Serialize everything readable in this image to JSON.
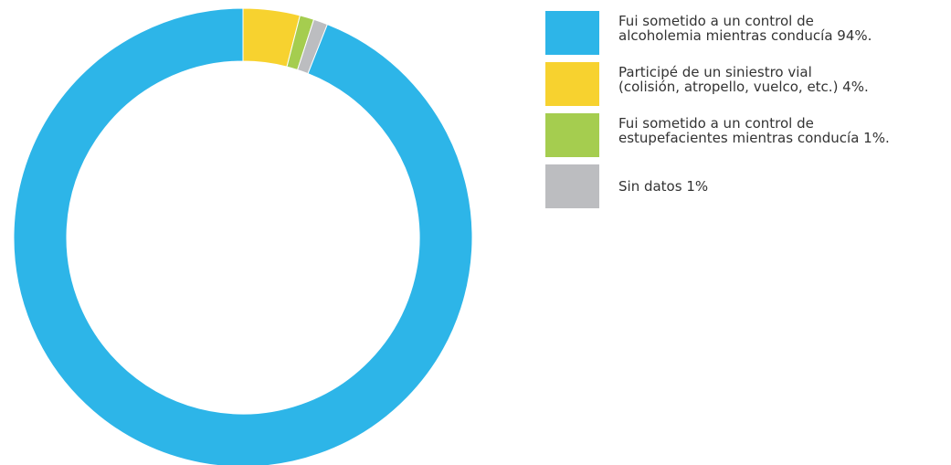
{
  "chart_data": {
    "type": "pie",
    "variant": "donut",
    "title": "",
    "legend_position": "right",
    "slices": [
      {
        "label": "Fui sometido a un control de\nalcoholemia mientras conducía 94%.",
        "value": 94,
        "color": "#2db5e8"
      },
      {
        "label": "Participé de un siniestro vial\n(colisión, atropello, vuelco, etc.) 4%.",
        "value": 4,
        "color": "#f7d22f"
      },
      {
        "label": "Fui sometido a un control de\nestupefacientes mientras conducía 1%.",
        "value": 1,
        "color": "#a5cd4f"
      },
      {
        "label": "Sin datos 1%",
        "value": 1,
        "color": "#bcbdc0"
      }
    ]
  }
}
